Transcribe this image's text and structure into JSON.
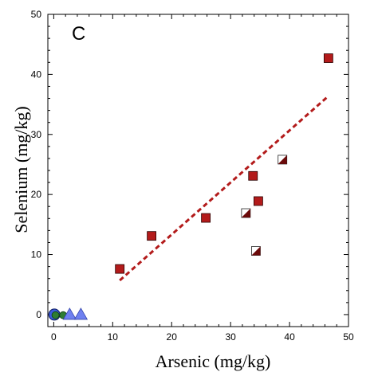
{
  "chart_data": {
    "type": "scatter",
    "panel_label": "C",
    "xlabel": "Arsenic (mg/kg)",
    "ylabel": "Selenium (mg/kg)",
    "xlim": [
      -1,
      50
    ],
    "ylim": [
      -2,
      50
    ],
    "x_ticks": [
      0,
      10,
      20,
      30,
      40,
      50
    ],
    "y_ticks": [
      0,
      10,
      20,
      30,
      40,
      50
    ],
    "grid": false,
    "series": [
      {
        "marker": "square",
        "color": "#B31B1B",
        "points": [
          [
            11.2,
            7.6
          ],
          [
            16.6,
            13.1
          ],
          [
            25.8,
            16.1
          ],
          [
            33.8,
            23.1
          ],
          [
            34.7,
            18.9
          ],
          [
            46.6,
            42.7
          ]
        ]
      },
      {
        "marker": "half-square",
        "color": "#6B0A0A",
        "points": [
          [
            32.6,
            16.9
          ],
          [
            34.3,
            10.6
          ],
          [
            38.8,
            25.8
          ]
        ]
      },
      {
        "marker": "circle-large",
        "color": "#3B5BDB",
        "points": [
          [
            0.1,
            0.0
          ]
        ]
      },
      {
        "marker": "circle-small",
        "color": "#2E7D32",
        "points": [
          [
            0.3,
            -0.1
          ],
          [
            1.6,
            -0.1
          ]
        ]
      },
      {
        "marker": "triangle",
        "color": "#6E80F0",
        "points": [
          [
            2.7,
            0.0
          ],
          [
            4.6,
            0.0
          ]
        ]
      }
    ],
    "trendline": {
      "style": "dashed",
      "color": "#B31B1B",
      "from": [
        11.2,
        5.7
      ],
      "to": [
        46.6,
        36.4
      ]
    }
  }
}
